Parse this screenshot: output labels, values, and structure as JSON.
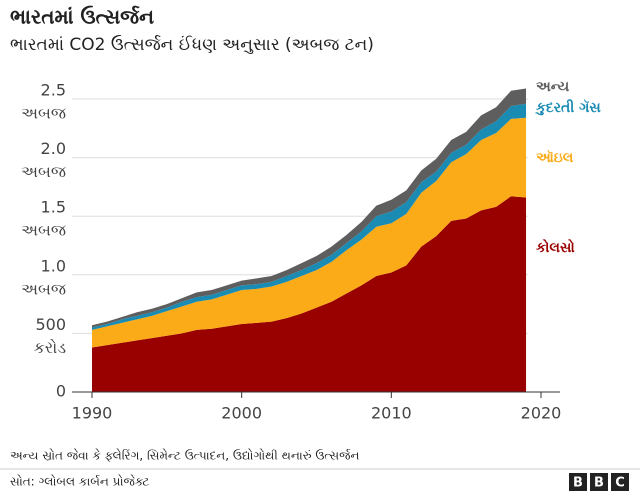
{
  "chart_data": {
    "type": "stacked_area",
    "title": "ભારતમાં ઉત્સર્જન",
    "subtitle": "ભારતમાં CO2 ઉત્સર્જન ઈંધણ અનુસાર (અબજ ટન)",
    "note": "અન્ય સ્રોત જેવા કે ફ્લેરિંગ, સિમેન્ટ ઉત્પાદન, ઉદ્યોગોથી થનારું ઉત્સર્જન",
    "source": "સોત: ગ્લોબલ કાર્બન પ્રોજેક્ટ",
    "logo": [
      "B",
      "B",
      "C"
    ],
    "x": [
      1990,
      1991,
      1992,
      1993,
      1994,
      1995,
      1996,
      1997,
      1998,
      1999,
      2000,
      2001,
      2002,
      2003,
      2004,
      2005,
      2006,
      2007,
      2008,
      2009,
      2010,
      2011,
      2012,
      2013,
      2014,
      2015,
      2016,
      2017,
      2018,
      2019
    ],
    "xlim": [
      1990,
      2020
    ],
    "xticks": [
      1990,
      2000,
      2010,
      2020
    ],
    "ylim": [
      0,
      2.5
    ],
    "yticks": [
      0,
      {
        "value": 0.5,
        "label": [
          "500",
          "કરોડ"
        ]
      },
      {
        "value": 1.0,
        "label": [
          "1.0",
          "અબજ"
        ]
      },
      {
        "value": 1.5,
        "label": [
          "1.5",
          "અબજ"
        ]
      },
      {
        "value": 2.0,
        "label": [
          "2.0",
          "અબજ"
        ]
      },
      {
        "value": 2.5,
        "label": [
          "2.5",
          "અબજ"
        ]
      }
    ],
    "grid": true,
    "series": [
      {
        "name": "કોલસો",
        "color": "#990000",
        "values": [
          0.38,
          0.4,
          0.42,
          0.44,
          0.46,
          0.48,
          0.5,
          0.53,
          0.54,
          0.56,
          0.58,
          0.59,
          0.6,
          0.63,
          0.67,
          0.72,
          0.77,
          0.84,
          0.91,
          0.99,
          1.02,
          1.08,
          1.24,
          1.33,
          1.46,
          1.48,
          1.55,
          1.58,
          1.67,
          1.66
        ]
      },
      {
        "name": "ઑઇલ",
        "color": "#fbab18",
        "values": [
          0.15,
          0.16,
          0.17,
          0.18,
          0.19,
          0.21,
          0.23,
          0.24,
          0.25,
          0.27,
          0.29,
          0.29,
          0.3,
          0.31,
          0.32,
          0.32,
          0.34,
          0.37,
          0.39,
          0.42,
          0.42,
          0.44,
          0.46,
          0.47,
          0.5,
          0.55,
          0.6,
          0.63,
          0.66,
          0.68
        ]
      },
      {
        "name": "કુદરતી ગૅસ",
        "color": "#1a8bb3",
        "values": [
          0.02,
          0.02,
          0.03,
          0.03,
          0.03,
          0.03,
          0.04,
          0.04,
          0.04,
          0.04,
          0.04,
          0.04,
          0.04,
          0.05,
          0.05,
          0.06,
          0.06,
          0.06,
          0.07,
          0.09,
          0.1,
          0.1,
          0.09,
          0.08,
          0.08,
          0.08,
          0.09,
          0.1,
          0.11,
          0.12
        ]
      },
      {
        "name": "અન્ય",
        "color": "#5e5e5e",
        "values": [
          0.02,
          0.02,
          0.02,
          0.03,
          0.03,
          0.03,
          0.03,
          0.04,
          0.04,
          0.04,
          0.04,
          0.05,
          0.05,
          0.05,
          0.06,
          0.06,
          0.07,
          0.07,
          0.08,
          0.09,
          0.1,
          0.1,
          0.1,
          0.11,
          0.11,
          0.11,
          0.12,
          0.12,
          0.13,
          0.13
        ]
      }
    ]
  }
}
